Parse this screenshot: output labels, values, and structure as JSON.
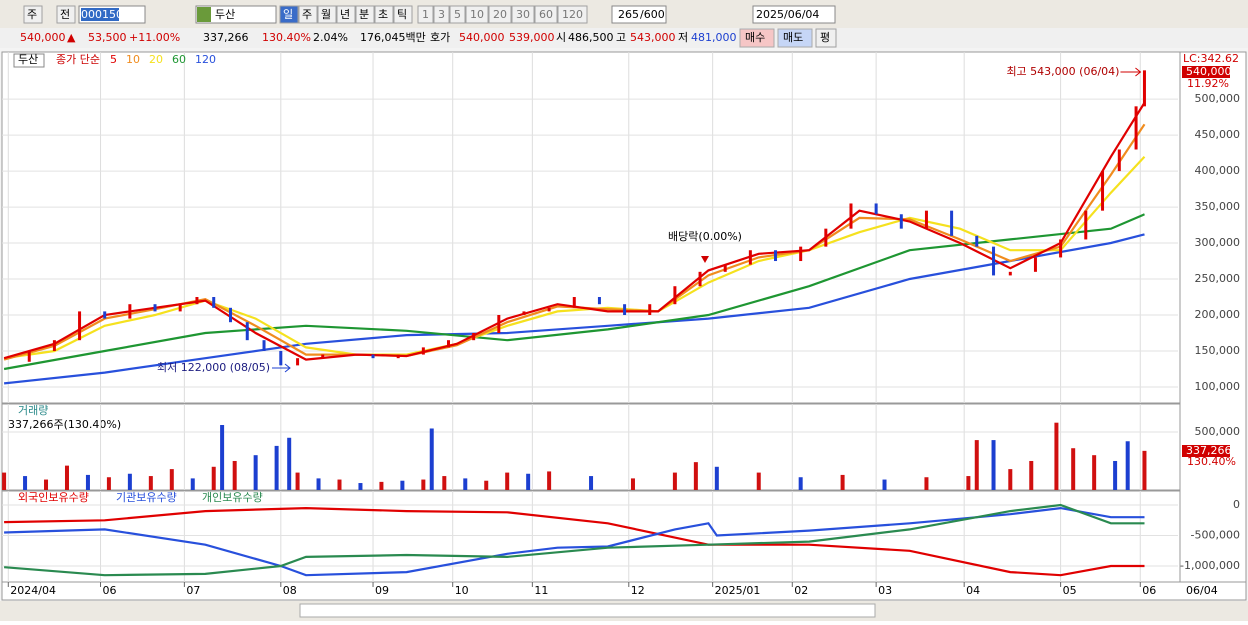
{
  "toolbar": {
    "market": "주",
    "prev": "전",
    "code": "000150",
    "name": "두산",
    "periods": [
      "일",
      "주",
      "월",
      "년",
      "분",
      "초",
      "틱"
    ],
    "intervals": [
      "1",
      "3",
      "5",
      "10",
      "20",
      "30",
      "60",
      "120"
    ],
    "count": "265",
    "max": "/600",
    "date": "2025/06/04"
  },
  "quote": {
    "price": "540,000",
    "arrow": "▲",
    "change": "53,500",
    "change_pct": "+11.00%",
    "volume": "337,266",
    "volume_ratio": "130.40%",
    "turnover": "2.04%",
    "amount": "176,045백만",
    "bid_label": "호가",
    "ask": "540,000",
    "bid": "539,000",
    "open_label": "시",
    "open": "486,500",
    "high_label": "고",
    "high": "543,000",
    "low_label": "저",
    "low": "481,000",
    "buy": "매수",
    "sell": "매도",
    "avg": "평"
  },
  "chart_data": [
    {
      "type": "candlestick",
      "title": "두산",
      "legend_title": "종가 단순",
      "close": {
        "x": [
          0,
          6,
          12,
          18,
          24,
          30,
          36,
          42,
          46,
          50,
          54,
          58,
          62,
          66,
          70,
          76,
          82,
          88,
          94,
          100,
          106,
          112,
          118,
          124,
          130,
          136,
          142,
          148,
          154,
          160,
          166,
          172,
          178,
          184,
          190,
          196,
          202,
          208,
          214,
          220,
          226,
          232,
          236,
          240,
          246,
          252,
          258,
          262,
          266,
          270,
          272
        ],
        "values": [
          135000,
          150000,
          165000,
          205000,
          195000,
          215000,
          205000,
          215000,
          225000,
          210000,
          190000,
          165000,
          150000,
          130000,
          140000,
          145000,
          145000,
          140000,
          145000,
          155000,
          165000,
          175000,
          200000,
          205000,
          210000,
          225000,
          215000,
          200000,
          215000,
          240000,
          260000,
          270000,
          290000,
          275000,
          295000,
          320000,
          355000,
          340000,
          320000,
          345000,
          310000,
          295000,
          255000,
          260000,
          280000,
          305000,
          345000,
          400000,
          430000,
          490000,
          540000
        ]
      },
      "series": [
        {
          "name": "5",
          "color": "#e00000",
          "x": [
            0,
            12,
            24,
            36,
            48,
            60,
            72,
            84,
            96,
            108,
            120,
            132,
            144,
            156,
            168,
            180,
            192,
            204,
            216,
            228,
            240,
            252,
            264,
            272
          ],
          "values": [
            140000,
            160000,
            200000,
            210000,
            220000,
            175000,
            138000,
            145000,
            143000,
            160000,
            195000,
            215000,
            205000,
            205000,
            262000,
            285000,
            290000,
            345000,
            330000,
            300000,
            265000,
            300000,
            420000,
            495000
          ]
        },
        {
          "name": "10",
          "color": "#f08c1e",
          "x": [
            0,
            12,
            24,
            36,
            48,
            60,
            72,
            84,
            96,
            108,
            120,
            132,
            144,
            156,
            168,
            180,
            192,
            204,
            216,
            228,
            240,
            252,
            264,
            272
          ],
          "values": [
            138000,
            157000,
            195000,
            208000,
            222000,
            185000,
            145000,
            145000,
            143000,
            158000,
            190000,
            212000,
            208000,
            205000,
            255000,
            280000,
            290000,
            335000,
            333000,
            305000,
            275000,
            295000,
            395000,
            465000
          ]
        },
        {
          "name": "20",
          "color": "#f5e11e",
          "x": [
            0,
            12,
            24,
            36,
            48,
            60,
            72,
            84,
            96,
            108,
            120,
            132,
            144,
            156,
            168,
            180,
            192,
            204,
            216,
            228,
            240,
            252,
            264,
            272
          ],
          "values": [
            140000,
            150000,
            185000,
            200000,
            220000,
            195000,
            155000,
            145000,
            145000,
            160000,
            185000,
            205000,
            210000,
            205000,
            245000,
            275000,
            290000,
            315000,
            335000,
            320000,
            290000,
            290000,
            370000,
            420000
          ]
        },
        {
          "name": "60",
          "color": "#1e9632",
          "x": [
            0,
            24,
            48,
            72,
            96,
            120,
            144,
            168,
            192,
            216,
            240,
            264,
            272
          ],
          "values": [
            125000,
            150000,
            175000,
            185000,
            178000,
            165000,
            180000,
            200000,
            240000,
            290000,
            305000,
            320000,
            340000
          ]
        },
        {
          "name": "120",
          "color": "#2850dc",
          "x": [
            0,
            24,
            48,
            72,
            96,
            120,
            144,
            168,
            192,
            216,
            240,
            264,
            272
          ],
          "values": [
            105000,
            120000,
            140000,
            160000,
            172000,
            175000,
            185000,
            195000,
            210000,
            250000,
            275000,
            300000,
            312000
          ]
        }
      ],
      "high_annotation": "최고 543,000 (06/04)",
      "low_annotation": "최저 122,000 (08/05)",
      "dividend_annotation": "배당락(0.00%)",
      "lc_label": "LC:342.62",
      "last_label": "540,000",
      "last_pct": "11.92%",
      "xlim": [
        -0.5,
        280
      ],
      "ylim": [
        77700,
        565500
      ],
      "yticks": [
        {
          "value": 100000,
          "label": "100,000"
        },
        {
          "value": 150000,
          "label": "150,000"
        },
        {
          "value": 200000,
          "label": "200,000"
        },
        {
          "value": 250000,
          "label": "250,000"
        },
        {
          "value": 300000,
          "label": "300,000"
        },
        {
          "value": 350000,
          "label": "350,000"
        },
        {
          "value": 400000,
          "label": "400,000"
        },
        {
          "value": 450000,
          "label": "450,000"
        },
        {
          "value": 500000,
          "label": "500,000"
        }
      ],
      "grid": true
    },
    {
      "type": "bar",
      "title": "거래량",
      "subtitle": "337,266주(130.40%)",
      "last_label": "337,266",
      "last_pct": "130.40%",
      "x": [
        0,
        5,
        10,
        15,
        20,
        25,
        30,
        35,
        40,
        45,
        50,
        52,
        55,
        60,
        65,
        68,
        70,
        75,
        80,
        85,
        90,
        95,
        100,
        102,
        105,
        110,
        115,
        120,
        125,
        130,
        140,
        150,
        160,
        165,
        170,
        180,
        190,
        200,
        210,
        220,
        230,
        232,
        236,
        240,
        245,
        251,
        255,
        260,
        265,
        268,
        272
      ],
      "values": [
        150000,
        120000,
        90000,
        210000,
        130000,
        110000,
        140000,
        120000,
        180000,
        100000,
        200000,
        560000,
        250000,
        300000,
        380000,
        450000,
        150000,
        100000,
        90000,
        60000,
        70000,
        80000,
        90000,
        530000,
        120000,
        100000,
        80000,
        150000,
        140000,
        160000,
        120000,
        100000,
        150000,
        240000,
        200000,
        150000,
        110000,
        130000,
        90000,
        110000,
        120000,
        430000,
        430000,
        180000,
        250000,
        580000,
        360000,
        300000,
        250000,
        420000,
        337266
      ],
      "colors": [
        "#d01010",
        "#1c3fd0",
        "#d01010",
        "#d01010",
        "#1c3fd0",
        "#d01010",
        "#1c3fd0",
        "#d01010",
        "#d01010",
        "#1c3fd0",
        "#d01010",
        "#1c3fd0",
        "#d01010",
        "#1c3fd0",
        "#1c3fd0",
        "#1c3fd0",
        "#d01010",
        "#1c3fd0",
        "#d01010",
        "#1c3fd0",
        "#d01010",
        "#1c3fd0",
        "#d01010",
        "#1c3fd0",
        "#d01010",
        "#1c3fd0",
        "#d01010",
        "#d01010",
        "#1c3fd0",
        "#d01010",
        "#1c3fd0",
        "#d01010",
        "#d01010",
        "#d01010",
        "#1c3fd0",
        "#d01010",
        "#1c3fd0",
        "#d01010",
        "#1c3fd0",
        "#d01010",
        "#d01010",
        "#d01010",
        "#1c3fd0",
        "#d01010",
        "#d01010",
        "#d01010",
        "#d01010",
        "#d01010",
        "#1c3fd0",
        "#1c3fd0",
        "#d01010"
      ],
      "xlim": [
        -0.5,
        280
      ],
      "ylim": [
        0,
        741000
      ],
      "yticks": [
        {
          "value": 500000,
          "label": "500,000"
        }
      ]
    },
    {
      "type": "line",
      "series": [
        {
          "name": "외국인보유수량",
          "color": "#e00000",
          "x": [
            0,
            24,
            48,
            72,
            96,
            120,
            144,
            168,
            192,
            216,
            240,
            252,
            264,
            272
          ],
          "values": [
            -280000,
            -250000,
            -100000,
            -50000,
            -100000,
            -120000,
            -300000,
            -650000,
            -650000,
            -750000,
            -1100000,
            -1150000,
            -1000000,
            -1000000
          ]
        },
        {
          "name": "기관보유수량",
          "color": "#2850dc",
          "x": [
            0,
            24,
            48,
            66,
            72,
            96,
            120,
            132,
            144,
            160,
            168,
            170,
            192,
            216,
            240,
            252,
            264,
            272
          ],
          "values": [
            -450000,
            -400000,
            -650000,
            -1000000,
            -1150000,
            -1100000,
            -800000,
            -700000,
            -680000,
            -400000,
            -300000,
            -500000,
            -420000,
            -300000,
            -150000,
            -50000,
            -200000,
            -200000
          ]
        },
        {
          "name": "개인보유수량",
          "color": "#2a8a50",
          "x": [
            0,
            24,
            48,
            66,
            72,
            96,
            120,
            144,
            168,
            192,
            216,
            240,
            252,
            264,
            272
          ],
          "values": [
            -1020000,
            -1150000,
            -1130000,
            -1000000,
            -850000,
            -820000,
            -850000,
            -700000,
            -650000,
            -600000,
            -400000,
            -100000,
            0,
            -300000,
            -300000
          ]
        }
      ],
      "xlim": [
        -0.5,
        280
      ],
      "ylim": [
        -1262000,
        230000
      ],
      "yticks": [
        0,
        {
          "value": -500000,
          "label": "-500,000"
        },
        {
          "value": -1000000,
          "label": "-1,000,000"
        }
      ],
      "xticks": [
        {
          "value": 1,
          "label": "2024/04"
        },
        {
          "value": 23,
          "label": "06"
        },
        {
          "value": 43,
          "label": "07"
        },
        {
          "value": 66,
          "label": "08"
        },
        {
          "value": 88,
          "label": "09"
        },
        {
          "value": 107,
          "label": "10"
        },
        {
          "value": 126,
          "label": "11"
        },
        {
          "value": 149,
          "label": "12"
        },
        {
          "value": 169,
          "label": "2025/01"
        },
        {
          "value": 188,
          "label": "02"
        },
        {
          "value": 208,
          "label": "03"
        },
        {
          "value": 229,
          "label": "04"
        },
        {
          "value": 252,
          "label": "05"
        },
        {
          "value": 271,
          "label": "06"
        }
      ],
      "cursor_date": "06/04"
    }
  ]
}
